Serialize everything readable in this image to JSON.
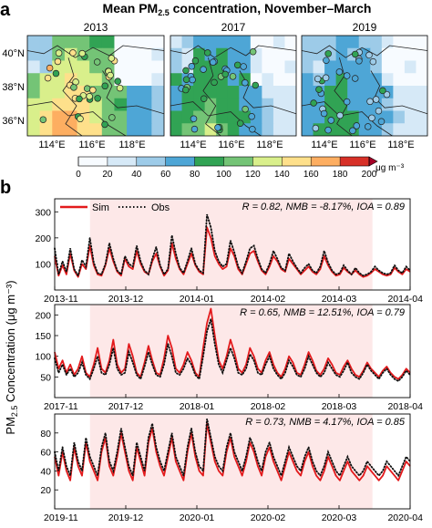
{
  "panel_a": {
    "label": "a",
    "title_main": "Mean PM",
    "title_sub": "2.5",
    "title_rest": " concentration, November–March",
    "maps": [
      {
        "year": "2013",
        "mean_level": 120
      },
      {
        "year": "2017",
        "mean_level": 80
      },
      {
        "year": "2019",
        "mean_level": 65
      }
    ],
    "lat_labels": [
      "40°N",
      "38°N",
      "36°N"
    ],
    "lon_labels": [
      "114°E",
      "116°E",
      "118°E"
    ],
    "colorbar": {
      "ticks": [
        "0",
        "20",
        "40",
        "60",
        "80",
        "100",
        "120",
        "140",
        "160",
        "180",
        "200"
      ],
      "unit": "μg m⁻³",
      "colors": [
        "#f7fbff",
        "#d6e9f7",
        "#9dcbe8",
        "#4ea6d6",
        "#31a354",
        "#74c476",
        "#d9ef8b",
        "#fee08b",
        "#fdae61",
        "#f46d43",
        "#d73027",
        "#a50026"
      ]
    }
  },
  "panel_b": {
    "label": "b",
    "ylabel_pre": "PM",
    "ylabel_sub": "2.5",
    "ylabel_post": " Concentration (μg m⁻³)",
    "legend": {
      "sim": "Sim",
      "obs": "Obs"
    },
    "colors": {
      "sim": "#e31a1c",
      "obs": "#111111",
      "shade": "#fde8e8"
    }
  },
  "chart_data": [
    {
      "type": "line",
      "stats": "R = 0.82, NMB = -8.17%, IOA = 0.89",
      "x_ticks": [
        "2013-11",
        "2013-12",
        "2014-01",
        "2014-02",
        "2014-03",
        "2014-04"
      ],
      "y_ticks": [
        100,
        200,
        300
      ],
      "ylim": [
        0,
        350
      ],
      "shaded_range_days": [
        15,
        135
      ],
      "series": [
        {
          "name": "Sim",
          "values": [
            130,
            55,
            95,
            60,
            140,
            75,
            50,
            100,
            80,
            170,
            95,
            60,
            55,
            95,
            160,
            110,
            70,
            55,
            120,
            90,
            80,
            150,
            100,
            70,
            60,
            110,
            140,
            90,
            55,
            75,
            180,
            120,
            80,
            60,
            100,
            140,
            95,
            70,
            60,
            240,
            200,
            130,
            100,
            80,
            90,
            160,
            130,
            80,
            60,
            100,
            140,
            150,
            110,
            75,
            60,
            90,
            130,
            110,
            80,
            70,
            120,
            100,
            80,
            60,
            75,
            90,
            70,
            60,
            80,
            130,
            95,
            70,
            55,
            60,
            85,
            70,
            60,
            75,
            60,
            50,
            55,
            65,
            80,
            70,
            60,
            55,
            60,
            85,
            70,
            60,
            80,
            70
          ]
        },
        {
          "name": "Obs",
          "values": [
            160,
            60,
            110,
            70,
            160,
            80,
            55,
            115,
            90,
            200,
            105,
            65,
            60,
            100,
            180,
            120,
            75,
            60,
            130,
            100,
            90,
            170,
            110,
            75,
            60,
            120,
            165,
            95,
            60,
            80,
            210,
            140,
            85,
            65,
            110,
            160,
            100,
            75,
            65,
            290,
            240,
            150,
            110,
            90,
            100,
            190,
            145,
            90,
            65,
            110,
            160,
            170,
            120,
            80,
            65,
            100,
            150,
            120,
            85,
            75,
            140,
            110,
            85,
            65,
            85,
            100,
            75,
            65,
            90,
            150,
            105,
            75,
            60,
            65,
            95,
            75,
            60,
            85,
            65,
            55,
            60,
            70,
            90,
            75,
            65,
            60,
            65,
            95,
            75,
            65,
            90,
            75
          ]
        }
      ]
    },
    {
      "type": "line",
      "stats": "R = 0.65, NMB = 12.51%, IOA = 0.79",
      "x_ticks": [
        "2017-11",
        "2017-12",
        "2018-01",
        "2018-02",
        "2018-03",
        "2018-04"
      ],
      "y_ticks": [
        50,
        100,
        150,
        200
      ],
      "ylim": [
        0,
        225
      ],
      "shaded_range_days": [
        15,
        135
      ],
      "series": [
        {
          "name": "Sim",
          "values": [
            110,
            70,
            90,
            60,
            80,
            55,
            70,
            100,
            60,
            50,
            80,
            120,
            70,
            60,
            90,
            140,
            80,
            60,
            70,
            130,
            100,
            60,
            50,
            85,
            125,
            90,
            60,
            55,
            95,
            150,
            120,
            70,
            60,
            80,
            110,
            90,
            60,
            50,
            120,
            180,
            215,
            150,
            90,
            70,
            100,
            140,
            110,
            70,
            60,
            80,
            120,
            100,
            70,
            60,
            90,
            110,
            80,
            60,
            50,
            70,
            100,
            85,
            60,
            55,
            80,
            110,
            90,
            65,
            55,
            70,
            95,
            80,
            60,
            55,
            75,
            90,
            70,
            55,
            50,
            65,
            85,
            70,
            60,
            50,
            65,
            75,
            60,
            50,
            45,
            55,
            70,
            60
          ]
        },
        {
          "name": "Obs",
          "values": [
            95,
            60,
            80,
            55,
            70,
            50,
            60,
            85,
            55,
            45,
            70,
            100,
            60,
            55,
            80,
            120,
            70,
            55,
            60,
            110,
            85,
            55,
            45,
            75,
            110,
            80,
            55,
            50,
            80,
            130,
            100,
            60,
            55,
            70,
            95,
            80,
            55,
            45,
            100,
            160,
            190,
            130,
            80,
            60,
            90,
            120,
            95,
            60,
            55,
            70,
            105,
            90,
            60,
            55,
            80,
            100,
            70,
            55,
            45,
            60,
            90,
            75,
            55,
            50,
            70,
            100,
            80,
            60,
            50,
            60,
            85,
            70,
            55,
            50,
            65,
            85,
            60,
            50,
            45,
            60,
            80,
            65,
            55,
            45,
            60,
            70,
            55,
            45,
            40,
            50,
            65,
            55
          ]
        }
      ]
    },
    {
      "type": "line",
      "stats": "R = 0.73, NMB = 4.17%, IOA = 0.85",
      "x_ticks": [
        "2019-11",
        "2019-12",
        "2020-01",
        "2020-02",
        "2020-03",
        "2020-04"
      ],
      "y_ticks": [
        20,
        40,
        60,
        80
      ],
      "ylim": [
        0,
        100
      ],
      "shaded_range_days": [
        15,
        135
      ],
      "series": [
        {
          "name": "Sim",
          "values": [
            55,
            35,
            60,
            40,
            30,
            65,
            45,
            35,
            70,
            50,
            40,
            30,
            60,
            75,
            45,
            35,
            55,
            80,
            60,
            40,
            30,
            65,
            50,
            35,
            70,
            85,
            60,
            45,
            35,
            55,
            75,
            50,
            40,
            30,
            60,
            80,
            55,
            40,
            35,
            90,
            70,
            50,
            40,
            35,
            60,
            75,
            55,
            45,
            35,
            50,
            70,
            60,
            45,
            35,
            55,
            65,
            50,
            40,
            30,
            45,
            60,
            50,
            40,
            35,
            50,
            60,
            45,
            35,
            30,
            40,
            55,
            45,
            35,
            30,
            40,
            50,
            40,
            35,
            30,
            35,
            45,
            40,
            35,
            30,
            35,
            45,
            40,
            35,
            30,
            40,
            50,
            45
          ]
        },
        {
          "name": "Obs",
          "values": [
            60,
            40,
            65,
            45,
            35,
            70,
            50,
            40,
            75,
            55,
            45,
            35,
            65,
            80,
            50,
            40,
            60,
            85,
            65,
            45,
            35,
            70,
            55,
            40,
            75,
            90,
            65,
            50,
            40,
            60,
            80,
            55,
            45,
            35,
            65,
            85,
            60,
            45,
            40,
            95,
            75,
            55,
            45,
            40,
            65,
            80,
            60,
            50,
            40,
            55,
            75,
            65,
            50,
            40,
            60,
            70,
            55,
            45,
            35,
            50,
            65,
            55,
            45,
            40,
            55,
            65,
            50,
            40,
            35,
            45,
            60,
            50,
            40,
            35,
            45,
            55,
            45,
            40,
            35,
            40,
            50,
            45,
            40,
            35,
            40,
            50,
            45,
            40,
            35,
            45,
            55,
            50
          ]
        }
      ]
    }
  ]
}
